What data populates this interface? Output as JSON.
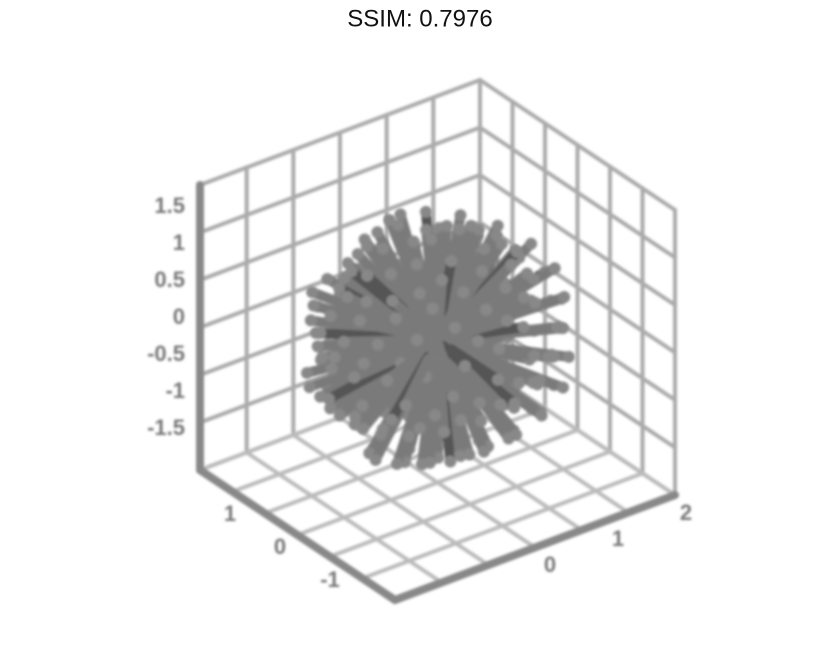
{
  "title": "SSIM: 0.7976",
  "z_tick_labels": [
    "1.5",
    "1",
    "0.5",
    "0",
    "-0.5",
    "-1",
    "-1.5"
  ],
  "x_tick_labels": [
    "1",
    "0",
    "-1"
  ],
  "y_tick_labels": [
    "0",
    "1",
    "2"
  ]
}
